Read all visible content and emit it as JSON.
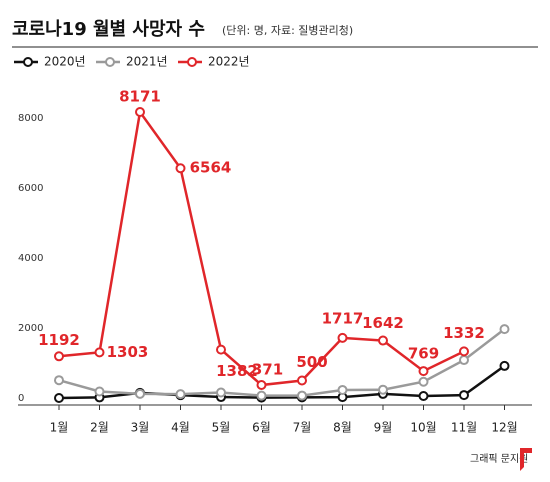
{
  "chart_data": {
    "type": "line",
    "title": "코로나19 월별 사망자 수",
    "subtitle": "(단위: 명, 자료: 질병관리청)",
    "credit": "그래픽 문지원",
    "categories": [
      "1월",
      "2월",
      "3월",
      "4월",
      "5월",
      "6월",
      "7월",
      "8월",
      "9월",
      "10월",
      "11월",
      "12월"
    ],
    "series": [
      {
        "name": "2020년",
        "color": "#111111",
        "show_values": false,
        "values": [
          0,
          17,
          145,
          81,
          27,
          11,
          19,
          25,
          117,
          57,
          83,
          917
        ]
      },
      {
        "name": "2021년",
        "color": "#9a9a9a",
        "show_values": false,
        "values": [
          508,
          186,
          119,
          111,
          157,
          68,
          69,
          230,
          237,
          465,
          1084,
          1967
        ]
      },
      {
        "name": "2022년",
        "color": "#e0262a",
        "show_values": true,
        "values": [
          1192,
          1303,
          8171,
          6564,
          1382,
          371,
          500,
          1717,
          1642,
          769,
          1332,
          null
        ]
      }
    ],
    "ylim": [
      0,
      8400
    ],
    "yticks": [
      0,
      2000,
      4000,
      6000,
      8000
    ],
    "grid": false,
    "legend": "top-left"
  }
}
